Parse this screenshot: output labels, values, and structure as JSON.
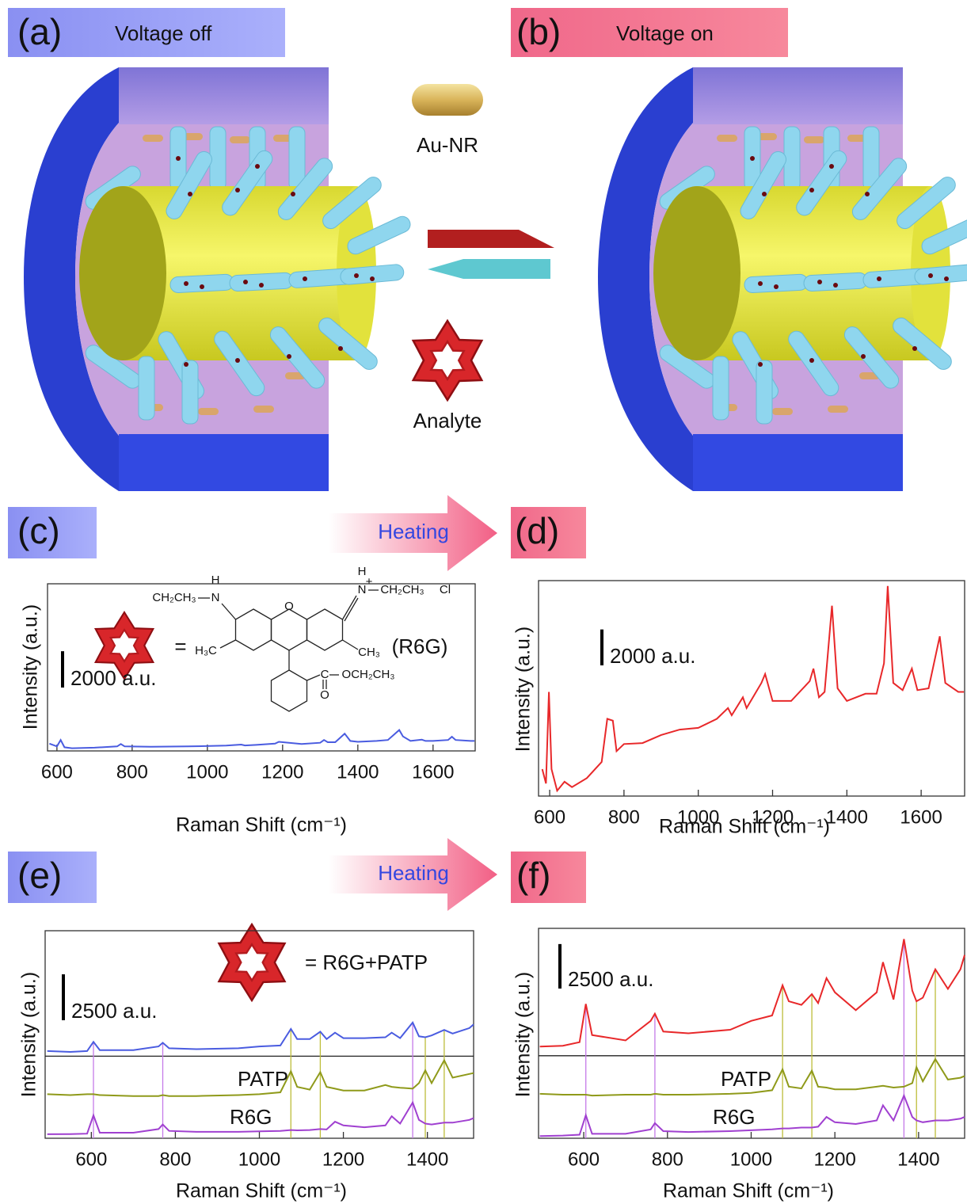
{
  "panels": [
    {
      "label": "(a)",
      "caption": "Voltage off"
    },
    {
      "label": "(b)",
      "caption": "Voltage on"
    },
    {
      "label": "(c)"
    },
    {
      "label": "(d)"
    },
    {
      "label": "(e)"
    },
    {
      "label": "(f)"
    }
  ],
  "schematic": {
    "rod_label": "Au-NR",
    "analyte_label": "Analyte"
  },
  "transitions": [
    "Heating",
    "Heating"
  ],
  "chart_data": [
    {
      "type": "line",
      "xlabel": "Raman Shift (cm⁻¹)",
      "ylabel": "Intensity (a.u.)",
      "x": [
        580,
        600,
        610,
        620,
        640,
        700,
        760,
        770,
        780,
        850,
        950,
        1050,
        1090,
        1100,
        1130,
        1180,
        1190,
        1250,
        1300,
        1310,
        1320,
        1340,
        1365,
        1380,
        1400,
        1450,
        1480,
        1510,
        1520,
        1540,
        1570,
        1580,
        1600,
        1640,
        1650,
        1660,
        1700,
        1710
      ],
      "xlim": [
        575,
        1712
      ],
      "xticks": [
        600,
        800,
        1000,
        1200,
        1400,
        1600
      ],
      "ylim": [
        0,
        9200
      ],
      "scale_bar": {
        "value": 2000,
        "label": "2000 a.u."
      },
      "inset": {
        "equals": "=",
        "name": "(R6G)",
        "labels": [
          "CH₂CH₃",
          "N",
          "H",
          "H",
          "+",
          "N",
          "CH₂CH₃",
          "Cl",
          "O",
          "H₃C",
          "CH₃",
          "C",
          "OCH₂CH₃",
          "O"
        ]
      },
      "series": [
        {
          "color": "#4a5ce0",
          "values": [
            400,
            250,
            600,
            200,
            150,
            180,
            250,
            380,
            250,
            230,
            250,
            290,
            350,
            300,
            330,
            400,
            500,
            380,
            450,
            600,
            480,
            480,
            950,
            550,
            500,
            550,
            600,
            1150,
            800,
            550,
            620,
            550,
            550,
            600,
            780,
            600,
            550,
            550
          ]
        }
      ]
    },
    {
      "type": "line",
      "xlabel": "Raman Shift (cm⁻¹)",
      "ylabel": "Intensity (a.u.)",
      "x": [
        580,
        590,
        598,
        605,
        620,
        640,
        660,
        700,
        740,
        755,
        770,
        780,
        800,
        850,
        900,
        950,
        1000,
        1050,
        1080,
        1090,
        1120,
        1130,
        1170,
        1180,
        1200,
        1250,
        1300,
        1310,
        1325,
        1340,
        1360,
        1375,
        1400,
        1450,
        1480,
        1500,
        1510,
        1525,
        1550,
        1575,
        1590,
        1620,
        1650,
        1665,
        1700,
        1715
      ],
      "xlim": [
        570,
        1717
      ],
      "xticks": [
        600,
        800,
        1000,
        1200,
        1400,
        1600
      ],
      "ylim": [
        0,
        12000
      ],
      "scale_bar": {
        "value": 2000,
        "label": "2000 a.u."
      },
      "series": [
        {
          "color": "#e8282a",
          "values": [
            1500,
            700,
            5800,
            1500,
            300,
            800,
            500,
            1000,
            1900,
            4300,
            4200,
            2500,
            2900,
            2950,
            3400,
            3700,
            3800,
            4300,
            4900,
            4500,
            5500,
            4900,
            6300,
            6800,
            5300,
            5300,
            6400,
            7100,
            5500,
            5800,
            10600,
            6000,
            5300,
            5700,
            5700,
            7400,
            11700,
            6300,
            5900,
            7100,
            5900,
            6000,
            8900,
            6300,
            5800,
            5800
          ]
        }
      ]
    },
    {
      "type": "line",
      "xlabel": "Raman Shift (cm⁻¹)",
      "ylabel": "Intensity (a.u.)",
      "x": [
        495,
        550,
        590,
        605,
        620,
        700,
        760,
        770,
        785,
        850,
        950,
        1000,
        1050,
        1075,
        1090,
        1120,
        1145,
        1160,
        1180,
        1200,
        1250,
        1300,
        1315,
        1335,
        1365,
        1380,
        1395,
        1410,
        1440,
        1460,
        1500,
        1510
      ],
      "xlim": [
        490,
        1510
      ],
      "xticks": [
        600,
        800,
        1000,
        1200,
        1400
      ],
      "ylim": [
        0,
        11300
      ],
      "scale_bar": {
        "value": 2500,
        "label": "2500 a.u."
      },
      "annotation": "= R6G+PATP",
      "baseline_rule": 4470,
      "reference_lines": [
        {
          "x": 605,
          "color": "#c57ae8"
        },
        {
          "x": 770,
          "color": "#c57ae8"
        },
        {
          "x": 1365,
          "color": "#c57ae8"
        },
        {
          "x": 1075,
          "color": "#bdbd3a"
        },
        {
          "x": 1145,
          "color": "#bdbd3a"
        },
        {
          "x": 1395,
          "color": "#bdbd3a"
        },
        {
          "x": 1440,
          "color": "#bdbd3a"
        }
      ],
      "series": [
        {
          "color": "#4a5ce0",
          "values": [
            4750,
            4700,
            4750,
            5250,
            4800,
            4800,
            5000,
            5200,
            4900,
            4850,
            4900,
            5000,
            5050,
            5950,
            5400,
            5400,
            5800,
            5400,
            5750,
            5450,
            5450,
            5500,
            5750,
            5450,
            6300,
            5550,
            5500,
            5600,
            5900,
            5700,
            6000,
            6200
          ]
        },
        {
          "name": "PATP",
          "color": "#8f9a1a",
          "values": [
            2400,
            2350,
            2400,
            2400,
            2350,
            2300,
            2300,
            2350,
            2300,
            2300,
            2350,
            2400,
            2500,
            3650,
            2800,
            2650,
            3600,
            2800,
            2700,
            2600,
            2600,
            2900,
            2800,
            2750,
            2700,
            3000,
            3700,
            3000,
            4250,
            3300,
            3500,
            3550
          ]
        },
        {
          "name": "R6G",
          "color": "#a040d0",
          "values": [
            220,
            230,
            250,
            1250,
            300,
            300,
            500,
            750,
            400,
            350,
            350,
            380,
            400,
            450,
            430,
            450,
            500,
            480,
            900,
            700,
            600,
            700,
            1200,
            800,
            1950,
            1000,
            800,
            750,
            850,
            850,
            1000,
            1100
          ]
        }
      ]
    },
    {
      "type": "line",
      "xlabel": "Raman Shift (cm⁻¹)",
      "ylabel": "Intensity (a.u.)",
      "x": [
        495,
        550,
        590,
        605,
        620,
        700,
        760,
        770,
        790,
        850,
        950,
        1000,
        1050,
        1075,
        1090,
        1120,
        1145,
        1160,
        1180,
        1200,
        1250,
        1300,
        1315,
        1340,
        1365,
        1385,
        1395,
        1410,
        1440,
        1470,
        1500,
        1510
      ],
      "xlim": [
        492,
        1510
      ],
      "xticks": [
        600,
        800,
        1000,
        1200,
        1400
      ],
      "ylim": [
        0,
        11800
      ],
      "scale_bar": {
        "value": 2500,
        "label": "2500 a.u."
      },
      "baseline_rule": 4640,
      "reference_lines": [
        {
          "x": 605,
          "color": "#c57ae8"
        },
        {
          "x": 770,
          "color": "#c57ae8"
        },
        {
          "x": 1365,
          "color": "#c57ae8"
        },
        {
          "x": 1075,
          "color": "#bdbd3a"
        },
        {
          "x": 1145,
          "color": "#bdbd3a"
        },
        {
          "x": 1395,
          "color": "#bdbd3a"
        },
        {
          "x": 1440,
          "color": "#bdbd3a"
        }
      ],
      "series": [
        {
          "color": "#e8282a",
          "values": [
            5150,
            5200,
            5400,
            7550,
            5800,
            5500,
            6600,
            7000,
            6000,
            5900,
            6100,
            6600,
            6900,
            8600,
            7700,
            7500,
            8100,
            7600,
            9000,
            8200,
            7200,
            8200,
            9900,
            7800,
            11200,
            8300,
            7700,
            7900,
            9500,
            8400,
            9500,
            10300
          ]
        },
        {
          "name": "PATP",
          "color": "#8f9a1a",
          "values": [
            2500,
            2450,
            2450,
            2450,
            2400,
            2450,
            2450,
            2500,
            2450,
            2450,
            2500,
            2550,
            2700,
            3880,
            2900,
            2800,
            3800,
            2900,
            2850,
            2750,
            2750,
            2900,
            2950,
            2850,
            2900,
            3100,
            4000,
            3200,
            4450,
            3300,
            3400,
            3500
          ]
        },
        {
          "name": "R6G",
          "color": "#a040d0",
          "values": [
            120,
            150,
            200,
            1300,
            250,
            250,
            500,
            850,
            400,
            350,
            400,
            450,
            500,
            550,
            550,
            600,
            600,
            650,
            1200,
            900,
            800,
            1000,
            1850,
            1000,
            2400,
            1200,
            1000,
            900,
            1000,
            1000,
            1100,
            1200
          ]
        }
      ]
    }
  ]
}
